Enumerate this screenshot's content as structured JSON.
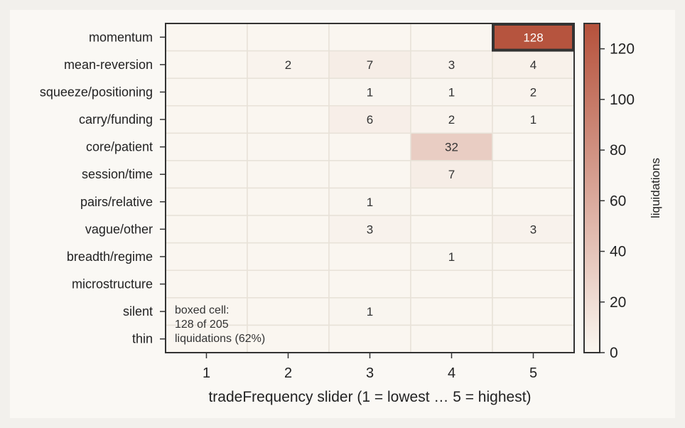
{
  "chart_data": {
    "type": "heatmap",
    "title": "",
    "xlabel": "tradeFrequency slider (1 = lowest … 5 = highest)",
    "ylabel": "",
    "x_categories": [
      "1",
      "2",
      "3",
      "4",
      "5"
    ],
    "y_categories": [
      "momentum",
      "mean-reversion",
      "squeeze/positioning",
      "carry/funding",
      "core/patient",
      "session/time",
      "pairs/relative",
      "vague/other",
      "breadth/regime",
      "microstructure",
      "silent",
      "thin"
    ],
    "values": [
      [
        0,
        0,
        0,
        0,
        128
      ],
      [
        0,
        2,
        7,
        3,
        4
      ],
      [
        0,
        0,
        1,
        1,
        2
      ],
      [
        0,
        0,
        6,
        2,
        1
      ],
      [
        0,
        0,
        0,
        32,
        0
      ],
      [
        0,
        0,
        0,
        7,
        0
      ],
      [
        0,
        0,
        1,
        0,
        0
      ],
      [
        0,
        0,
        3,
        0,
        3
      ],
      [
        0,
        0,
        0,
        1,
        0
      ],
      [
        0,
        0,
        0,
        0,
        0
      ],
      [
        0,
        0,
        1,
        0,
        0
      ],
      [
        0,
        0,
        0,
        0,
        0
      ]
    ],
    "highlight_cell": {
      "row": "momentum",
      "col": "5"
    },
    "annotation": [
      "boxed cell:",
      "128 of 205",
      "liquidations (62%)"
    ],
    "colorbar": {
      "label": "liquidations",
      "min": 0,
      "max": 130,
      "ticks": [
        0,
        20,
        40,
        60,
        80,
        100,
        120
      ],
      "color_low": "#faf6f0",
      "color_high": "#b5513b"
    },
    "grid": true,
    "colors": {
      "background": "#faf8f4",
      "axis": "#333333",
      "cell_border": "#e8e2d8"
    }
  }
}
